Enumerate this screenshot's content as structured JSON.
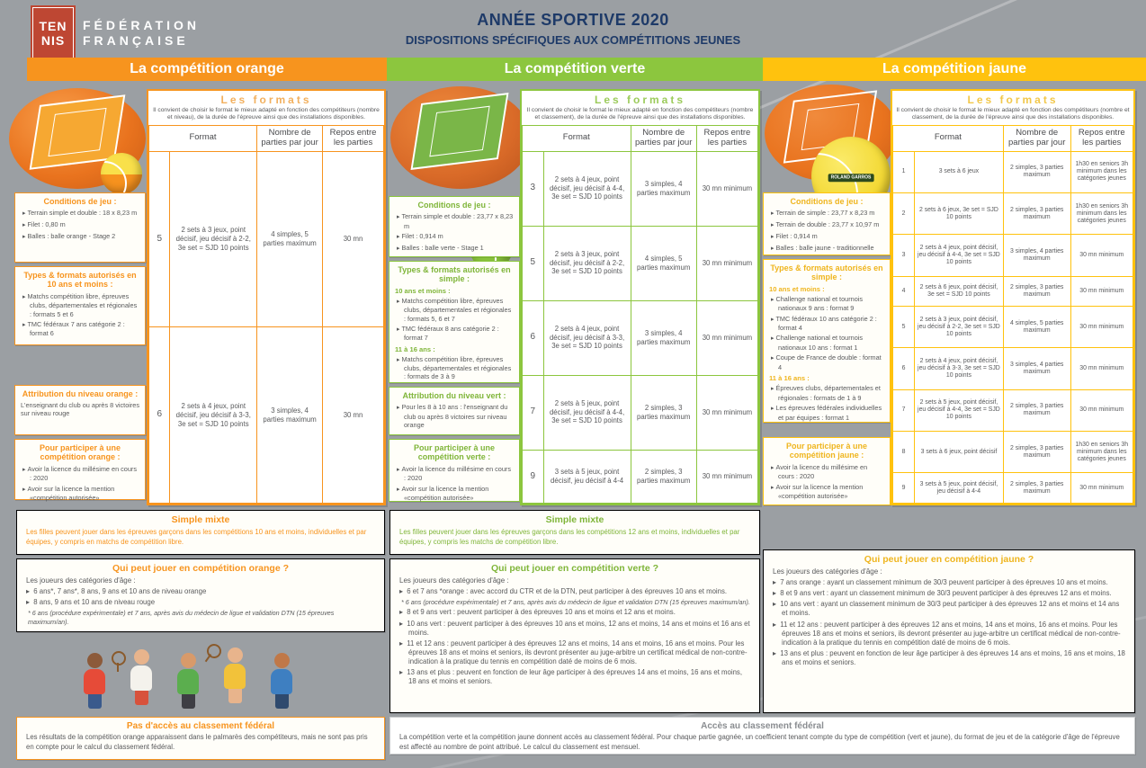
{
  "palette": {
    "orange": "#F7941E",
    "vert": "#8CC63E",
    "jaune": "#FFC20E",
    "navy": "#1E3A68",
    "text": "#58595B",
    "background": "#9B9FA3",
    "logo_red": "#BE4733"
  },
  "header": {
    "logo": {
      "line1": "TEN",
      "line2": "NIS",
      "org_line1": "FÉDÉRATION",
      "org_line2": "FRANÇAISE"
    },
    "title": "ANNÉE SPORTIVE 2020",
    "subtitle": "DISPOSITIONS SPÉCIFIQUES AUX COMPÉTITIONS JEUNES"
  },
  "columns": [
    {
      "id": "orange",
      "banner": "La compétition orange",
      "conditions": {
        "title": "Conditions de jeu :",
        "items": [
          "Terrain simple et double : 18 x 8,23 m",
          "Filet : 0,80 m",
          "Balles : balle orange - Stage 2"
        ]
      },
      "types": {
        "title": "Types & formats autorisés en 10 ans et moins :",
        "groups": [
          {
            "label": "",
            "items": [
              "Matchs compétition libre, épreuves clubs, départementales et régionales : formats 5 et 6",
              "TMC fédéraux 7 ans catégorie 2 : format 6"
            ]
          }
        ]
      },
      "attribution": {
        "title": "Attribution du niveau orange :",
        "text": "L'enseignant du club ou après 8 victoires sur niveau rouge"
      },
      "participate": {
        "title": "Pour participer à une compétition orange :",
        "items": [
          "Avoir la licence du millésime en cours : 2020",
          "Avoir sur la licence la mention «compétition autorisée»"
        ]
      },
      "formats": {
        "title": "Les formats",
        "subtitle": "Il convient de choisir le format le mieux adapté en fonction des compétiteurs (nombre et niveau), de la durée de l'épreuve ainsi que des installations disponibles.",
        "headers": [
          "Format",
          "Nombre de parties par jour",
          "Repos entre les parties"
        ],
        "rows": [
          {
            "num": "5",
            "format": "2 sets à 3 jeux, point décisif, jeu décisif à 2-2, 3e set = SJD 10 points",
            "parties": "4 simples, 5 parties maximum",
            "repos": "30 mn"
          },
          {
            "num": "6",
            "format": "2 sets à 4 jeux, point décisif, jeu décisif à 3-3, 3e set = SJD 10 points",
            "parties": "3 simples, 4 parties maximum",
            "repos": "30 mn"
          }
        ]
      },
      "simple_mixte": {
        "title": "Simple mixte",
        "text": "Les filles peuvent jouer dans les épreuves garçons dans les compétitions 10 ans et moins, individuelles et par équipes, y compris en matchs de compétition libre."
      },
      "who": {
        "title": "Qui peut jouer en compétition orange ?",
        "intro": "Les joueurs des catégories d'âge :",
        "entries": [
          {
            "type": "bullet",
            "text": "6 ans*, 7 ans*, 8 ans, 9 ans et 10 ans de niveau orange"
          },
          {
            "type": "bullet",
            "text": "8 ans, 9 ans et 10 ans de niveau rouge"
          },
          {
            "type": "note",
            "text": "* 6 ans (procédure expérimentale) et 7 ans, après avis du médecin de ligue et validation DTN (15 épreuves maximum/an)."
          }
        ]
      }
    },
    {
      "id": "verte",
      "banner": "La compétition verte",
      "conditions": {
        "title": "Conditions de jeu :",
        "items": [
          "Terrain simple et double : 23,77 x 8,23 m",
          "Filet : 0,914 m",
          "Balles : balle verte - Stage 1"
        ]
      },
      "types": {
        "title": "Types & formats autorisés en simple :",
        "groups": [
          {
            "label": "10 ans et moins :",
            "items": [
              "Matchs compétition libre, épreuves clubs, départementales et régionales : formats 5, 6 et 7",
              "TMC fédéraux 8 ans catégorie 2 : format 7"
            ]
          },
          {
            "label": "11 à 16 ans :",
            "items": [
              "Matchs compétition libre, épreuves clubs, départementales et régionales : formats de 3 à 9"
            ]
          }
        ]
      },
      "attribution": {
        "title": "Attribution du niveau vert :",
        "items": [
          "Pour les 8 à 10 ans : l'enseignant du club ou après 8 victoires sur niveau orange"
        ]
      },
      "participate": {
        "title": "Pour participer à une compétition verte :",
        "items": [
          "Avoir la licence du millésime en cours : 2020",
          "Avoir sur la licence la mention «compétition autorisée»"
        ]
      },
      "formats": {
        "title": "Les formats",
        "subtitle": "Il convient de choisir le format le mieux adapté en fonction des compétiteurs (nombre et classement), de la durée de l'épreuve ainsi que des installations disponibles.",
        "headers": [
          "Format",
          "Nombre de parties par jour",
          "Repos entre les parties"
        ],
        "rows": [
          {
            "num": "3",
            "format": "2 sets à 4 jeux, point décisif, jeu décisif à 4-4, 3e set = SJD 10 points",
            "parties": "3 simples, 4 parties maximum",
            "repos": "30 mn minimum"
          },
          {
            "num": "5",
            "format": "2 sets à 3 jeux, point décisif, jeu décisif à 2-2, 3e set = SJD 10 points",
            "parties": "4 simples, 5 parties maximum",
            "repos": "30 mn minimum"
          },
          {
            "num": "6",
            "format": "2 sets à 4 jeux, point décisif, jeu décisif à 3-3, 3e set = SJD 10 points",
            "parties": "3 simples, 4 parties maximum",
            "repos": "30 mn minimum"
          },
          {
            "num": "7",
            "format": "2 sets à 5 jeux, point décisif, jeu décisif à 4-4, 3e set = SJD 10 points",
            "parties": "2 simples, 3 parties maximum",
            "repos": "30 mn minimum"
          },
          {
            "num": "9",
            "format": "3 sets à 5 jeux, point décisif, jeu décisif à 4-4",
            "parties": "2 simples, 3 parties maximum",
            "repos": "30 mn minimum"
          }
        ]
      },
      "simple_mixte": {
        "title": "Simple mixte",
        "text": "Les filles peuvent jouer dans les épreuves garçons dans les compétitions 12 ans et moins, individuelles et par équipes, y compris les matchs de compétition libre."
      },
      "who": {
        "title": "Qui peut jouer en compétition verte ?",
        "intro": "Les joueurs des catégories d'âge :",
        "entries": [
          {
            "type": "bullet",
            "text": "6 et 7 ans *orange : avec accord du CTR et de la DTN, peut participer à des épreuves 10 ans et moins."
          },
          {
            "type": "note",
            "text": "* 6 ans (procédure expérimentale) et 7 ans, après avis du médecin de ligue et validation DTN (15 épreuves maximum/an)."
          },
          {
            "type": "bullet",
            "text": "8 et 9 ans vert : peuvent participer à des épreuves 10 ans et moins et 12 ans et moins."
          },
          {
            "type": "bullet",
            "text": "10 ans vert : peuvent participer à des épreuves 10 ans et moins, 12 ans et moins, 14 ans et moins et 16 ans et moins."
          },
          {
            "type": "bullet",
            "text": "11 et 12 ans : peuvent participer à des épreuves 12 ans et moins, 14 ans et moins, 16 ans et moins. Pour les épreuves 18 ans et moins et seniors, ils devront présenter au juge-arbitre un certificat médical de non-contre-indication à la pratique du tennis en compétition daté de moins de 6 mois."
          },
          {
            "type": "bullet",
            "text": "13 ans et plus : peuvent en fonction de leur âge participer à des épreuves 14 ans et moins, 16 ans et moins, 18 ans et moins et seniors."
          }
        ]
      }
    },
    {
      "id": "jaune",
      "banner": "La compétition jaune",
      "ball_label": "ROLAND GARROS",
      "conditions": {
        "title": "Conditions de jeu :",
        "items": [
          "Terrain de simple : 23,77 x 8,23 m",
          "Terrain de double : 23,77 x 10,97 m",
          "Filet : 0,914 m",
          "Balles : balle jaune - traditionnelle"
        ]
      },
      "types": {
        "title": "Types & formats autorisés en simple :",
        "groups": [
          {
            "label": "10 ans et moins :",
            "items": [
              "Challenge national et tournois nationaux 9 ans : format 9",
              "TMC fédéraux 10 ans catégorie 2 : format 4",
              "Challenge national et tournois nationaux 10 ans : format 1",
              "Coupe de France de double : format 4"
            ]
          },
          {
            "label": "11 à 16 ans :",
            "items": [
              "Épreuves clubs, départementales et régionales : formats de 1 à 9",
              "Les épreuves fédérales individuelles et par équipes : format 1"
            ]
          }
        ]
      },
      "participate": {
        "title": "Pour participer à une compétition jaune :",
        "items": [
          "Avoir la licence du millésime en cours : 2020",
          "Avoir sur la licence la mention «compétition autorisée»"
        ]
      },
      "formats": {
        "title": "Les formats",
        "subtitle": "Il convient de choisir le format le mieux adapté en fonction des compétiteurs (nombre et classement, de la durée de l'épreuve ainsi que des installations disponibles.",
        "headers": [
          "Format",
          "Nombre de parties par jour",
          "Repos entre les parties"
        ],
        "rows": [
          {
            "num": "1",
            "format": "3 sets à 6 jeux",
            "parties": "2 simples, 3 parties maximum",
            "repos": "1h30 en seniors 3h minimum dans les catégories jeunes"
          },
          {
            "num": "2",
            "format": "2 sets à 6 jeux, 3e set = SJD 10 points",
            "parties": "2 simples, 3 parties maximum",
            "repos": "1h30 en seniors 3h minimum dans les catégories jeunes"
          },
          {
            "num": "3",
            "format": "2 sets à 4 jeux, point décisif, jeu décisif à 4-4, 3e set = SJD 10 points",
            "parties": "3 simples, 4 parties maximum",
            "repos": "30 mn minimum"
          },
          {
            "num": "4",
            "format": "2 sets à 6 jeux, point décisif, 3e set = SJD 10 points",
            "parties": "2 simples, 3 parties maximum",
            "repos": "30 mn minimum"
          },
          {
            "num": "5",
            "format": "2 sets à 3 jeux, point décisif, jeu décisif à 2-2, 3e set = SJD 10 points",
            "parties": "4 simples, 5 parties maximum",
            "repos": "30 mn minimum"
          },
          {
            "num": "6",
            "format": "2 sets à 4 jeux, point décisif, jeu décisif à 3-3, 3e set = SJD 10 points",
            "parties": "3 simples, 4 parties maximum",
            "repos": "30 mn minimum"
          },
          {
            "num": "7",
            "format": "2 sets à 5 jeux, point décisif, jeu décisif à 4-4, 3e set = SJD 10 points",
            "parties": "2 simples, 3 parties maximum",
            "repos": "30 mn minimum"
          },
          {
            "num": "8",
            "format": "3 sets à 6 jeux, point décisif",
            "parties": "2 simples, 3 parties maximum",
            "repos": "1h30 en seniors 3h minimum dans les catégories jeunes"
          },
          {
            "num": "9",
            "format": "3 sets à 5 jeux, point décisif, jeu décisif à 4-4",
            "parties": "2 simples, 3 parties maximum",
            "repos": "30 mn minimum"
          }
        ]
      },
      "who": {
        "title": "Qui peut jouer en compétition jaune ?",
        "intro": "Les joueurs des catégories d'âge :",
        "entries": [
          {
            "type": "bullet",
            "text": "7 ans orange : ayant un classement minimum de 30/3 peuvent participer à des épreuves 10 ans et moins."
          },
          {
            "type": "bullet",
            "text": "8 et 9 ans vert : ayant un classement minimum de 30/3 peuvent participer à des épreuves 12 ans et moins."
          },
          {
            "type": "bullet",
            "text": "10 ans vert : ayant un classement minimum de 30/3 peut participer à des épreuves 12 ans et moins et 14 ans et moins."
          },
          {
            "type": "bullet",
            "text": "11 et 12 ans : peuvent participer à des épreuves 12 ans et moins, 14 ans et moins, 16 ans et moins. Pour les épreuves 18 ans et moins et seniors, ils devront présenter au juge-arbitre un certificat médical de non-contre-indication à la pratique du tennis en compétition daté de moins de 6 mois."
          },
          {
            "type": "bullet",
            "text": "13 ans et plus : peuvent en fonction de leur âge participer à des épreuves 14 ans et moins, 16 ans et moins, 18 ans et moins et seniors."
          }
        ]
      }
    }
  ],
  "footer": {
    "left": {
      "title": "Pas d'accès au classement fédéral",
      "text": "Les résultats de la compétition orange apparaissent dans le palmarès des compétiteurs, mais ne sont pas pris en compte pour le calcul du classement fédéral."
    },
    "right": {
      "title": "Accès au classement fédéral",
      "text": "La compétition verte et la compétition jaune donnent accès au classement fédéral. Pour chaque partie gagnée, un coefficient tenant compte du type de compétition (vert et jaune), du format de jeu et de la catégorie d'âge de l'épreuve est affecté au nombre de point attribué. Le calcul du classement est mensuel."
    }
  }
}
